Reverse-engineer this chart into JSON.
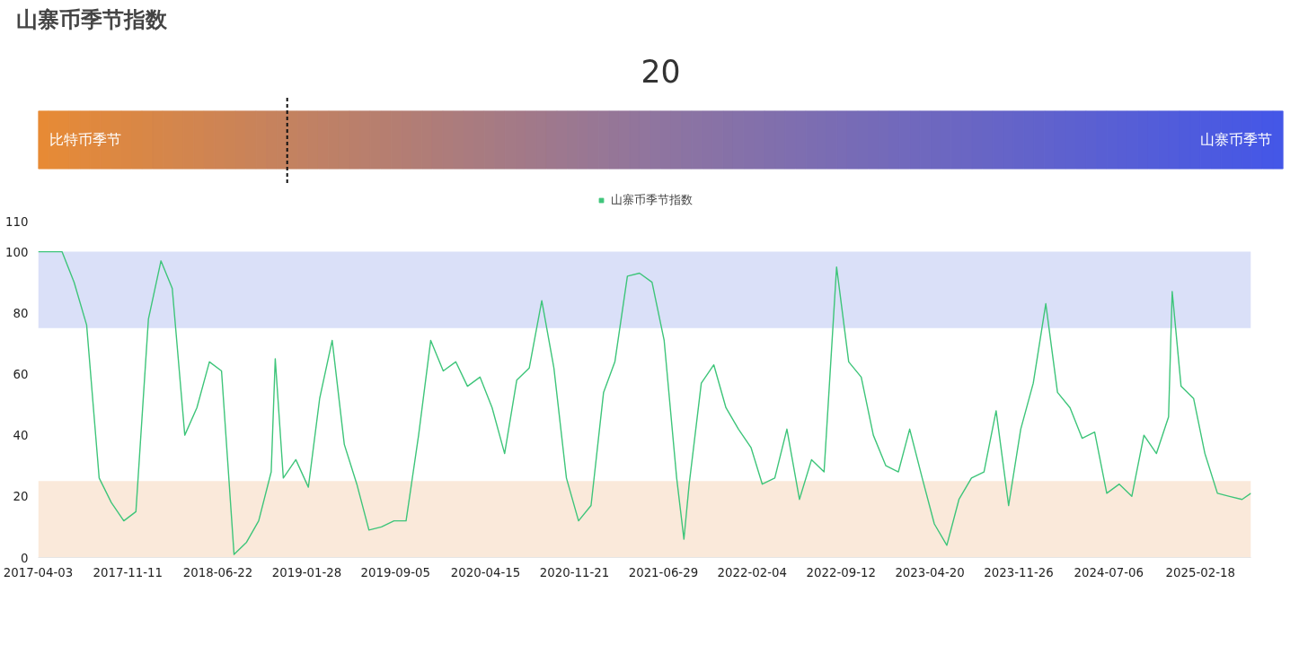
{
  "chart_data": [
    {
      "type": "other",
      "title": "山寨币季节指数",
      "values": [
        20
      ],
      "data_labels": true,
      "annotations": [
        "比特币季节",
        "山寨币季节"
      ]
    },
    {
      "type": "line",
      "legend": "top",
      "grid": false,
      "marker": "none",
      "line_style": "solid",
      "x": [
        "2017-04-03",
        "2017-05",
        "2017-06",
        "2017-07",
        "2017-08",
        "2017-09",
        "2017-10",
        "2017-11",
        "2017-12",
        "2018-01",
        "2018-02",
        "2018-03",
        "2018-04",
        "2018-05",
        "2018-06",
        "2018-07",
        "2018-08",
        "2018-09",
        "2018-10",
        "2018-11",
        "2018-11-11",
        "2018-12",
        "2019-01",
        "2019-02",
        "2019-03",
        "2019-04",
        "2019-05",
        "2019-06",
        "2019-07",
        "2019-08",
        "2019-09",
        "2019-10",
        "2019-11",
        "2019-12",
        "2020-01",
        "2020-02",
        "2020-03",
        "2020-04",
        "2020-05",
        "2020-06",
        "2020-07",
        "2020-08",
        "2020-09",
        "2020-10",
        "2020-11",
        "2020-12",
        "2021-01",
        "2021-02",
        "2021-03",
        "2021-04",
        "2021-05",
        "2021-06",
        "2021-07",
        "2021-08",
        "2021-08-19",
        "2021-09",
        "2021-10",
        "2021-11",
        "2021-12",
        "2022-01",
        "2022-02",
        "2022-03",
        "2022-04",
        "2022-05",
        "2022-06",
        "2022-07",
        "2022-08",
        "2022-09",
        "2022-10",
        "2022-11",
        "2022-12",
        "2023-01",
        "2023-02",
        "2023-03",
        "2023-04",
        "2023-05",
        "2023-06",
        "2023-07",
        "2023-08",
        "2023-09",
        "2023-10",
        "2023-11",
        "2023-12",
        "2024-01",
        "2024-02",
        "2024-03",
        "2024-04",
        "2024-05",
        "2024-06",
        "2024-07",
        "2024-08",
        "2024-09",
        "2024-10",
        "2024-11",
        "2024-12",
        "2024-12-10",
        "2025-01",
        "2025-02",
        "2025-03",
        "2025-04",
        "2025-05",
        "2025-06",
        "2025-06-23"
      ],
      "series": [
        {
          "name": "山寨币季节指数",
          "color": "#3ec57a",
          "values": [
            100,
            100,
            100,
            90,
            76,
            26,
            18,
            12,
            15,
            78,
            97,
            88,
            40,
            49,
            64,
            61,
            1,
            5,
            12,
            28,
            65,
            26,
            32,
            23,
            52,
            71,
            37,
            24,
            9,
            10,
            12,
            12,
            40,
            71,
            61,
            64,
            56,
            59,
            49,
            34,
            58,
            62,
            84,
            62,
            26,
            12,
            17,
            54,
            64,
            92,
            93,
            90,
            71,
            26,
            6,
            24,
            57,
            63,
            49,
            42,
            36,
            24,
            26,
            42,
            19,
            32,
            28,
            95,
            64,
            59,
            40,
            30,
            28,
            42,
            26,
            11,
            4,
            19,
            26,
            28,
            48,
            17,
            42,
            57,
            83,
            54,
            49,
            39,
            41,
            21,
            24,
            20,
            40,
            34,
            46,
            87,
            56,
            52,
            34,
            21,
            20,
            19,
            21
          ]
        }
      ],
      "xlim": [
        "2017-04-03",
        "2025-06-23"
      ],
      "xticks": [
        "2017-04-03",
        "2017-11-11",
        "2018-06-22",
        "2019-01-28",
        "2019-09-05",
        "2020-04-15",
        "2020-11-21",
        "2021-06-29",
        "2022-02-04",
        "2022-09-12",
        "2023-04-20",
        "2023-11-26",
        "2024-07-06",
        "2025-02-18"
      ],
      "ylim": [
        0,
        110
      ],
      "yticks": [
        0,
        20,
        40,
        60,
        80,
        100,
        110
      ],
      "bands": [
        {
          "axis": "y",
          "from": 75,
          "to": 100,
          "color": "#dae0f8"
        },
        {
          "axis": "y",
          "from": 0,
          "to": 25,
          "color": "#fae9da"
        }
      ]
    }
  ]
}
